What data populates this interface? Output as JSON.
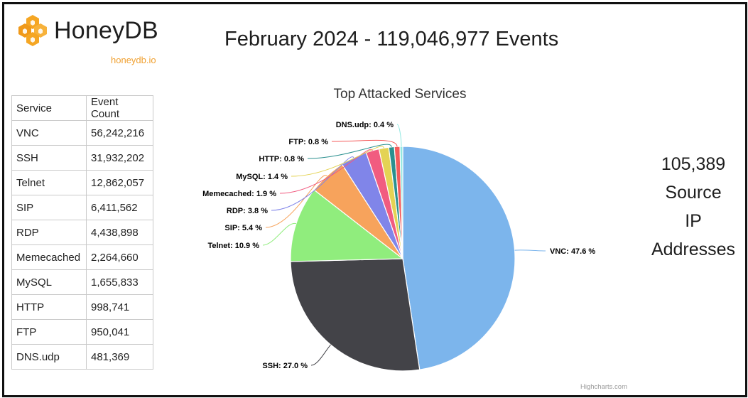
{
  "header": {
    "brand_name": "HoneyDB",
    "brand_url": "honeydb.io",
    "headline": "February 2024 - 119,046,977 Events"
  },
  "table": {
    "headers": [
      "Service",
      "Event Count"
    ],
    "rows": [
      [
        "VNC",
        "56,242,216"
      ],
      [
        "SSH",
        "31,932,202"
      ],
      [
        "Telnet",
        "12,862,057"
      ],
      [
        "SIP",
        "6,411,562"
      ],
      [
        "RDP",
        "4,438,898"
      ],
      [
        "Memecached",
        "2,264,660"
      ],
      [
        "MySQL",
        "1,655,833"
      ],
      [
        "HTTP",
        "998,741"
      ],
      [
        "FTP",
        "950,041"
      ],
      [
        "DNS.udp",
        "481,369"
      ]
    ]
  },
  "source_ip": {
    "lines": [
      "105,389",
      "Source",
      "IP",
      "Addresses"
    ]
  },
  "chart_data": {
    "type": "pie",
    "title": "Top Attacked Services",
    "credits": "Highcharts.com",
    "slices": [
      {
        "name": "VNC",
        "value": 47.6,
        "label": "VNC: 47.6 %",
        "color": "#7cb5ec"
      },
      {
        "name": "SSH",
        "value": 27.0,
        "label": "SSH: 27.0 %",
        "color": "#434348"
      },
      {
        "name": "Telnet",
        "value": 10.9,
        "label": "Telnet: 10.9 %",
        "color": "#90ed7d"
      },
      {
        "name": "SIP",
        "value": 5.4,
        "label": "SIP: 5.4 %",
        "color": "#f7a35c"
      },
      {
        "name": "RDP",
        "value": 3.8,
        "label": "RDP: 3.8 %",
        "color": "#8085e9"
      },
      {
        "name": "Memecached",
        "value": 1.9,
        "label": "Memecached: 1.9 %",
        "color": "#f15c80"
      },
      {
        "name": "MySQL",
        "value": 1.4,
        "label": "MySQL: 1.4 %",
        "color": "#e4d354"
      },
      {
        "name": "HTTP",
        "value": 0.8,
        "label": "HTTP: 0.8 %",
        "color": "#2b908f"
      },
      {
        "name": "FTP",
        "value": 0.8,
        "label": "FTP: 0.8 %",
        "color": "#f45b5b"
      },
      {
        "name": "DNS.udp",
        "value": 0.4,
        "label": "DNS.udp: 0.4 %",
        "color": "#91e8e1"
      }
    ]
  }
}
